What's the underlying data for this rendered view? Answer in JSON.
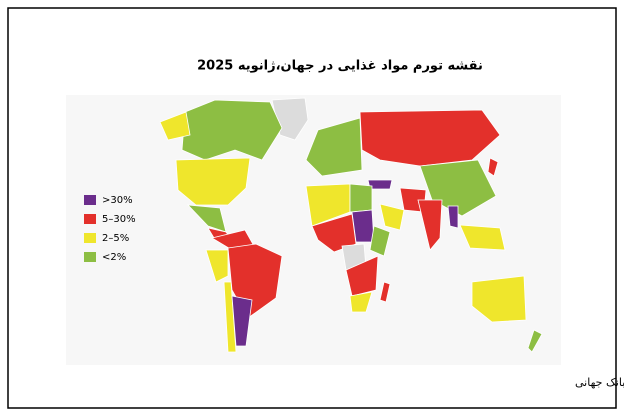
{
  "title": "نقشه تورم مواد غذایی در جهان،ژانویه 2025",
  "legend": [
    {
      "label": ">30%",
      "color": "#6b2d8c"
    },
    {
      "label": "5–30%",
      "color": "#e3302b"
    },
    {
      "label": "2–5%",
      "color": "#efe62c"
    },
    {
      "label": "<2%",
      "color": "#8dbe43"
    }
  ],
  "source": "منبع: بانک جهانی"
}
